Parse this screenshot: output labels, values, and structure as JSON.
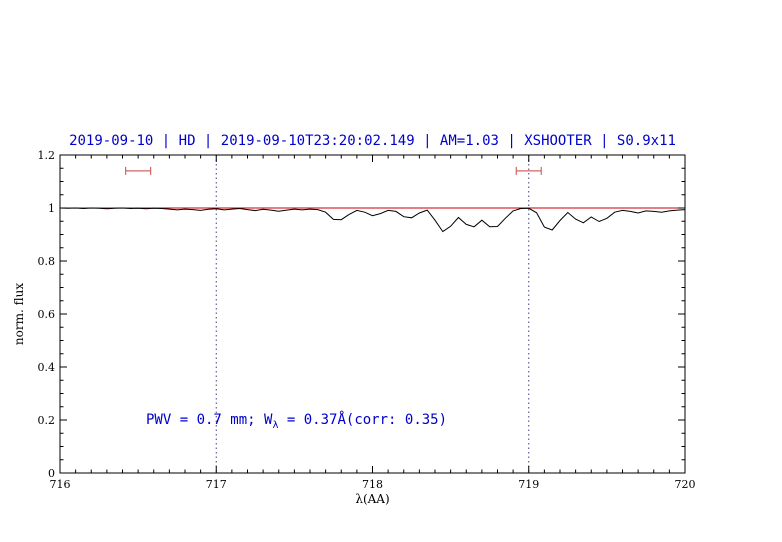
{
  "header": {
    "title": "2019-09-10 | HD | 2019-09-10T23:20:02.149 | AM=1.03 | XSHOOTER | S0.9x11"
  },
  "annotation": {
    "prefix": "PWV = 0.7 mm; W",
    "sub": "λ",
    "suffix": " = 0.37Å(corr: 0.35)"
  },
  "colors": {
    "title_blue": "#0000cd",
    "spectrum": "#000000",
    "model": "#cc0000",
    "marker": "#d06666",
    "vline": "#404080",
    "frame": "#000000"
  },
  "chart_data": {
    "type": "line",
    "title": "2019-09-10 | HD | 2019-09-10T23:20:02.149 | AM=1.03 | XSHOOTER | S0.9x11",
    "xlabel": "λ(AA)",
    "ylabel": "norm. flux",
    "xlim": [
      716,
      720
    ],
    "ylim": [
      0,
      1.2
    ],
    "xtick_values": [
      716,
      717,
      718,
      719,
      720
    ],
    "xtick_labels": [
      "716",
      "717",
      "718",
      "719",
      "720"
    ],
    "ytick_values": [
      0,
      0.2,
      0.4,
      0.6,
      0.8,
      1,
      1.2
    ],
    "ytick_labels": [
      "0",
      "0.2",
      "0.4",
      "0.6",
      "0.8",
      "1",
      "1.2"
    ],
    "x_minor_step": 0.1,
    "y_minor_step": 0.05,
    "grid": false,
    "vlines": [
      717,
      719
    ],
    "interval_markers": [
      {
        "x1": 716.42,
        "x2": 716.58,
        "y": 1.14
      },
      {
        "x1": 718.92,
        "x2": 719.08,
        "y": 1.14
      }
    ],
    "annotation": {
      "text": "PWV = 0.7 mm; Wλ = 0.37Å(corr: 0.35)",
      "x": 716.55,
      "y": 0.2
    },
    "series": [
      {
        "name": "telluric-model",
        "color": "#cc0000",
        "points": [
          [
            716.0,
            1.0
          ],
          [
            720.0,
            1.0
          ]
        ]
      },
      {
        "name": "observed-spectrum",
        "color": "#000000",
        "points": [
          [
            716.0,
            1.0
          ],
          [
            716.05,
            0.999
          ],
          [
            716.1,
            1.0
          ],
          [
            716.15,
            0.998
          ],
          [
            716.2,
            1.0
          ],
          [
            716.25,
            0.999
          ],
          [
            716.3,
            0.997
          ],
          [
            716.35,
            0.999
          ],
          [
            716.4,
            1.0
          ],
          [
            716.45,
            0.998
          ],
          [
            716.5,
            0.999
          ],
          [
            716.55,
            0.997
          ],
          [
            716.6,
            0.999
          ],
          [
            716.65,
            0.998
          ],
          [
            716.7,
            0.996
          ],
          [
            716.75,
            0.993
          ],
          [
            716.8,
            0.996
          ],
          [
            716.85,
            0.994
          ],
          [
            716.9,
            0.991
          ],
          [
            716.95,
            0.995
          ],
          [
            717.0,
            0.997
          ],
          [
            717.05,
            0.993
          ],
          [
            717.1,
            0.996
          ],
          [
            717.15,
            0.998
          ],
          [
            717.2,
            0.994
          ],
          [
            717.25,
            0.99
          ],
          [
            717.3,
            0.995
          ],
          [
            717.35,
            0.992
          ],
          [
            717.4,
            0.988
          ],
          [
            717.45,
            0.992
          ],
          [
            717.5,
            0.996
          ],
          [
            717.55,
            0.993
          ],
          [
            717.6,
            0.996
          ],
          [
            717.65,
            0.994
          ],
          [
            717.7,
            0.984
          ],
          [
            717.75,
            0.957
          ],
          [
            717.8,
            0.956
          ],
          [
            717.85,
            0.976
          ],
          [
            717.9,
            0.991
          ],
          [
            717.95,
            0.984
          ],
          [
            718.0,
            0.971
          ],
          [
            718.05,
            0.979
          ],
          [
            718.1,
            0.991
          ],
          [
            718.15,
            0.987
          ],
          [
            718.2,
            0.967
          ],
          [
            718.25,
            0.963
          ],
          [
            718.3,
            0.981
          ],
          [
            718.35,
            0.992
          ],
          [
            718.4,
            0.954
          ],
          [
            718.45,
            0.911
          ],
          [
            718.5,
            0.931
          ],
          [
            718.55,
            0.964
          ],
          [
            718.6,
            0.938
          ],
          [
            718.65,
            0.929
          ],
          [
            718.7,
            0.954
          ],
          [
            718.75,
            0.929
          ],
          [
            718.8,
            0.93
          ],
          [
            718.85,
            0.961
          ],
          [
            718.9,
            0.989
          ],
          [
            718.95,
            0.998
          ],
          [
            719.0,
            0.999
          ],
          [
            719.05,
            0.982
          ],
          [
            719.1,
            0.928
          ],
          [
            719.15,
            0.917
          ],
          [
            719.2,
            0.953
          ],
          [
            719.25,
            0.983
          ],
          [
            719.3,
            0.958
          ],
          [
            719.35,
            0.944
          ],
          [
            719.4,
            0.966
          ],
          [
            719.45,
            0.949
          ],
          [
            719.5,
            0.961
          ],
          [
            719.55,
            0.984
          ],
          [
            719.6,
            0.991
          ],
          [
            719.65,
            0.987
          ],
          [
            719.7,
            0.981
          ],
          [
            719.75,
            0.989
          ],
          [
            719.8,
            0.987
          ],
          [
            719.85,
            0.984
          ],
          [
            719.9,
            0.989
          ],
          [
            719.95,
            0.992
          ],
          [
            720.0,
            0.994
          ]
        ]
      }
    ]
  }
}
